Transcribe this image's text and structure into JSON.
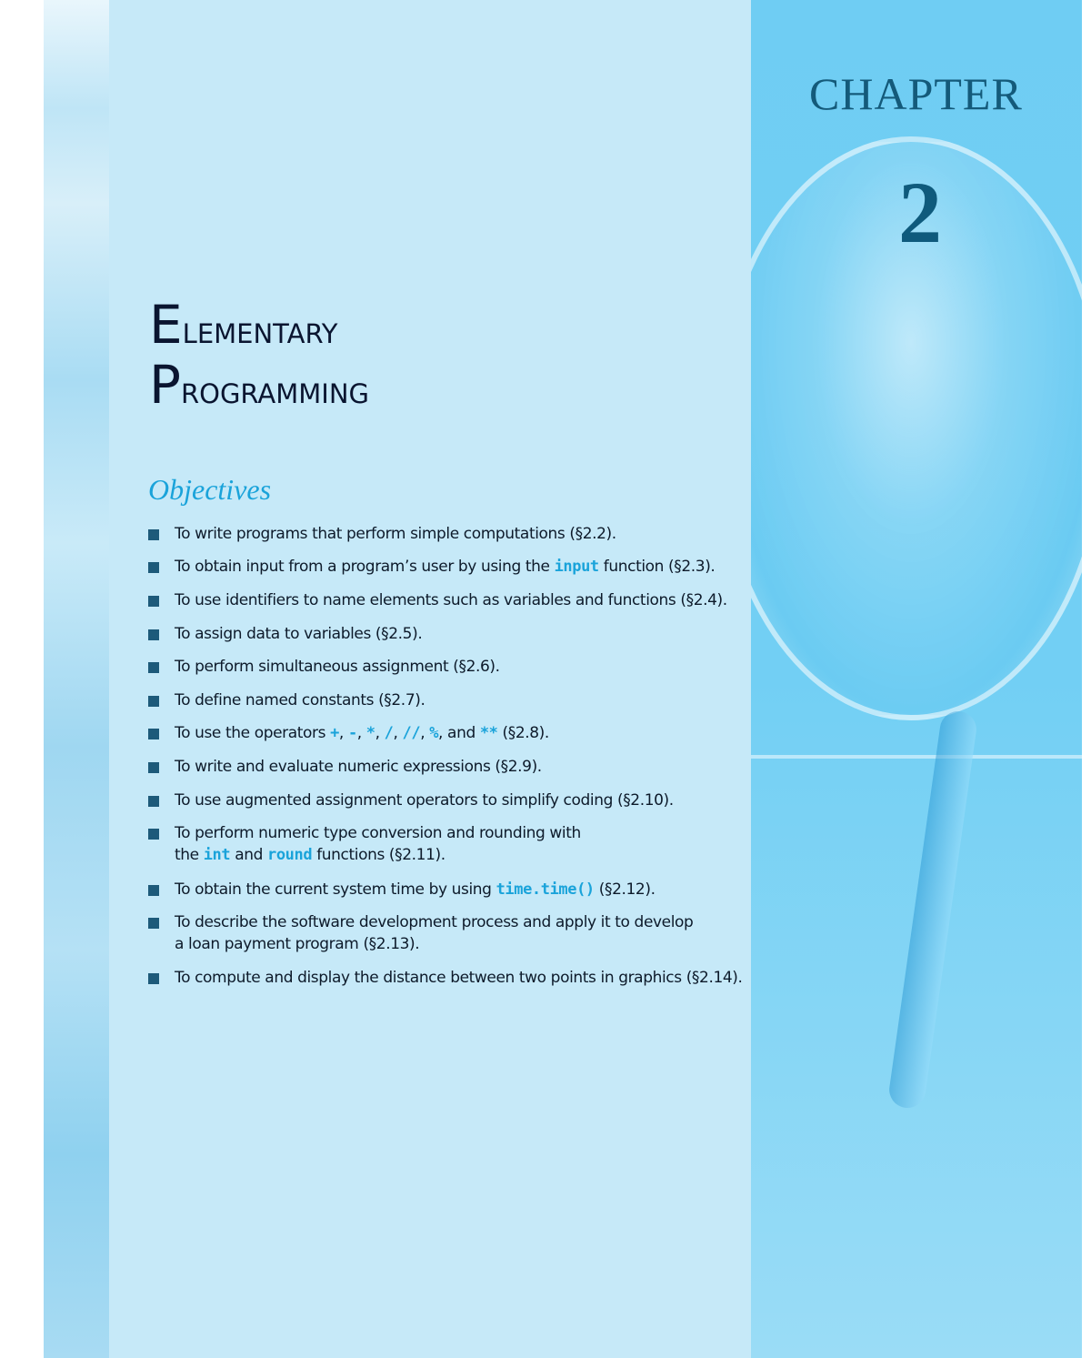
{
  "chapter": {
    "label": "CHAPTER",
    "number": "2"
  },
  "title": {
    "line1_initial": "E",
    "line1_rest": "lementary",
    "line2_initial": "P",
    "line2_rest": "rogramming"
  },
  "objectives": {
    "heading": "Objectives",
    "items": [
      {
        "segments": [
          "To write programs that perform simple computations (§2.2)."
        ]
      },
      {
        "segments": [
          "To obtain input from a program’s user by using the ",
          "input",
          " function (§2.3)."
        ]
      },
      {
        "segments": [
          "To use identifiers to name elements such as variables and functions (§2.4)."
        ]
      },
      {
        "segments": [
          "To assign data to variables (§2.5)."
        ]
      },
      {
        "segments": [
          "To perform simultaneous assignment (§2.6)."
        ]
      },
      {
        "segments": [
          "To define named constants (§2.7)."
        ]
      },
      {
        "segments": [
          "To use the operators ",
          "+",
          ", ",
          "-",
          ", ",
          "*",
          ", ",
          "/",
          ", ",
          "//",
          ", ",
          "%",
          ", and ",
          "**",
          " (§2.8)."
        ]
      },
      {
        "segments": [
          "To write and evaluate numeric expressions (§2.9)."
        ]
      },
      {
        "segments": [
          "To use augmented assignment operators to simplify coding (§2.10)."
        ]
      },
      {
        "segments": [
          "To perform numeric type conversion and rounding with",
          "the ",
          "int",
          " and ",
          "round",
          " functions (§2.11)."
        ]
      },
      {
        "segments": [
          "To obtain the current system time by using ",
          "time.time()",
          " (§2.12)."
        ]
      },
      {
        "segments": [
          "To describe the software development process and apply it to develop",
          "a loan payment program (§2.13)."
        ]
      },
      {
        "segments": [
          "To compute and display the distance between two points in graphics (§2.14)."
        ]
      }
    ]
  },
  "colors": {
    "main_panel": "#c6e9f8",
    "right_panel": "#6fcdf3",
    "accent": "#1aa3da",
    "bullet": "#1d5a7a",
    "title": "#0a1530"
  }
}
